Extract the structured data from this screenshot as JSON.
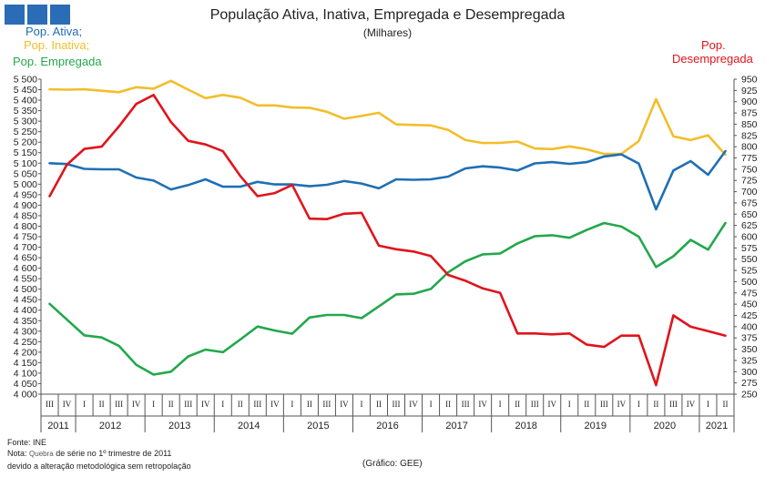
{
  "header": {
    "title": "População Ativa, Inativa, Empregada e Desempregada",
    "subtitle": "(Milhares)"
  },
  "legend_left": {
    "ativa": "Pop. Ativa;",
    "inativa": "Pop. Inativa;",
    "empregada": "Pop. Empregada"
  },
  "legend_right": {
    "line1": "Pop.",
    "line2": "Desempregada"
  },
  "footer": {
    "source": "Fonte: INE",
    "note_prefix": "Nota:",
    "note_quebra": "Quebra",
    "note_rest": "de série no 1º trimestre de 2011",
    "note_line2": "devido a alteração metodológica sem retropolação",
    "credit": "(Gráfico: GEE)"
  },
  "colors": {
    "ativa": "#1f6fb4",
    "inativa": "#f2be2c",
    "empregada": "#22a84c",
    "desempregada": "#e0141c",
    "logo": "#2b6cb7"
  },
  "chart_data": {
    "type": "line",
    "quarters": [
      "III",
      "IV",
      "I",
      "II",
      "III",
      "IV",
      "I",
      "II",
      "III",
      "IV",
      "I",
      "II",
      "III",
      "IV",
      "I",
      "II",
      "III",
      "IV",
      "I",
      "II",
      "III",
      "IV",
      "I",
      "II",
      "III",
      "IV",
      "I",
      "II",
      "III",
      "IV",
      "I",
      "II",
      "III",
      "IV",
      "I",
      "II",
      "III",
      "IV",
      "I",
      "II"
    ],
    "years": [
      {
        "label": "2011",
        "start": 0,
        "end": 1
      },
      {
        "label": "2012",
        "start": 2,
        "end": 5
      },
      {
        "label": "2013",
        "start": 6,
        "end": 9
      },
      {
        "label": "2014",
        "start": 10,
        "end": 13
      },
      {
        "label": "2015",
        "start": 14,
        "end": 17
      },
      {
        "label": "2016",
        "start": 18,
        "end": 21
      },
      {
        "label": "2017",
        "start": 22,
        "end": 25
      },
      {
        "label": "2018",
        "start": 26,
        "end": 29
      },
      {
        "label": "2019",
        "start": 30,
        "end": 33
      },
      {
        "label": "2020",
        "start": 34,
        "end": 37
      },
      {
        "label": "2021",
        "start": 38,
        "end": 39
      }
    ],
    "left_axis": {
      "min": 4000,
      "max": 5500,
      "step": 50
    },
    "right_axis": {
      "min": 250,
      "max": 950,
      "step": 25
    },
    "series": [
      {
        "key": "inativa",
        "axis": "left",
        "values": [
          5452,
          5450,
          5452,
          5445,
          5438,
          5462,
          5455,
          5492,
          5450,
          5410,
          5425,
          5412,
          5375,
          5375,
          5365,
          5364,
          5345,
          5312,
          5325,
          5340,
          5285,
          5282,
          5280,
          5258,
          5210,
          5196,
          5197,
          5203,
          5170,
          5167,
          5180,
          5166,
          5144,
          5144,
          5205,
          5405,
          5228,
          5210,
          5233,
          5140
        ]
      },
      {
        "key": "ativa",
        "axis": "left",
        "values": [
          5100,
          5096,
          5073,
          5071,
          5071,
          5032,
          5017,
          4975,
          4996,
          5023,
          4988,
          4988,
          5011,
          4999,
          4999,
          4990,
          4997,
          5015,
          5003,
          4980,
          5023,
          5021,
          5023,
          5036,
          5075,
          5085,
          5079,
          5065,
          5099,
          5105,
          5097,
          5105,
          5132,
          5142,
          5098,
          4880,
          5065,
          5110,
          5045,
          5157
        ]
      },
      {
        "key": "empregada",
        "axis": "left",
        "values": [
          4430,
          4355,
          4280,
          4270,
          4230,
          4140,
          4093,
          4107,
          4180,
          4212,
          4200,
          4260,
          4322,
          4303,
          4288,
          4365,
          4377,
          4377,
          4362,
          4418,
          4475,
          4478,
          4501,
          4580,
          4633,
          4666,
          4670,
          4718,
          4752,
          4757,
          4745,
          4782,
          4815,
          4798,
          4750,
          4605,
          4657,
          4735,
          4688,
          4815
        ]
      },
      {
        "key": "desempregada",
        "axis": "right",
        "values": [
          690,
          760,
          795,
          800,
          845,
          895,
          915,
          855,
          813,
          805,
          790,
          735,
          690,
          697,
          715,
          640,
          639,
          651,
          653,
          580,
          572,
          567,
          557,
          515,
          502,
          485,
          475,
          385,
          385,
          383,
          385,
          360,
          355,
          380,
          380,
          270,
          425,
          400,
          390,
          380
        ]
      }
    ]
  }
}
